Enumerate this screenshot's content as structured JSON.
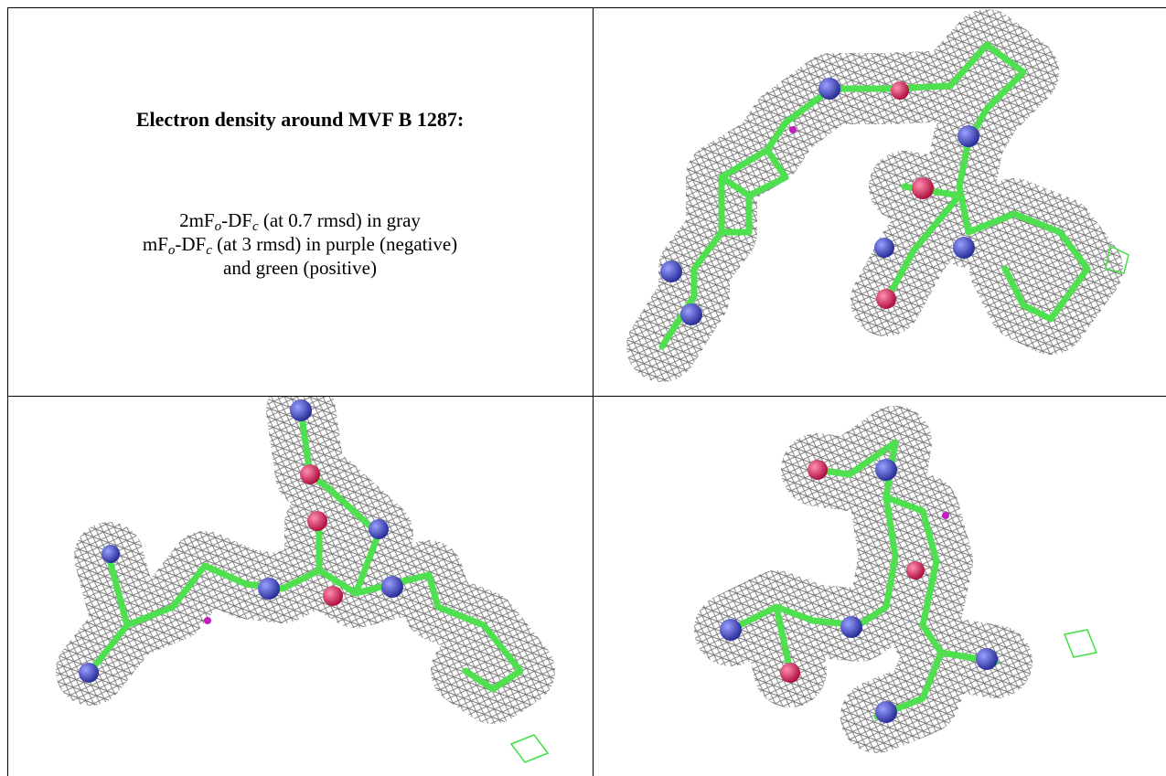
{
  "figure": {
    "title": "Electron density around MVF B 1287:",
    "lines": [
      [
        "2mF",
        "o",
        "-DF",
        "c",
        " (at 0.7 rmsd) in gray"
      ],
      [
        "mF",
        "o",
        "-DF",
        "c",
        " (at 3 rmsd) in purple (negative)"
      ],
      [
        "and green (positive)"
      ]
    ]
  }
}
